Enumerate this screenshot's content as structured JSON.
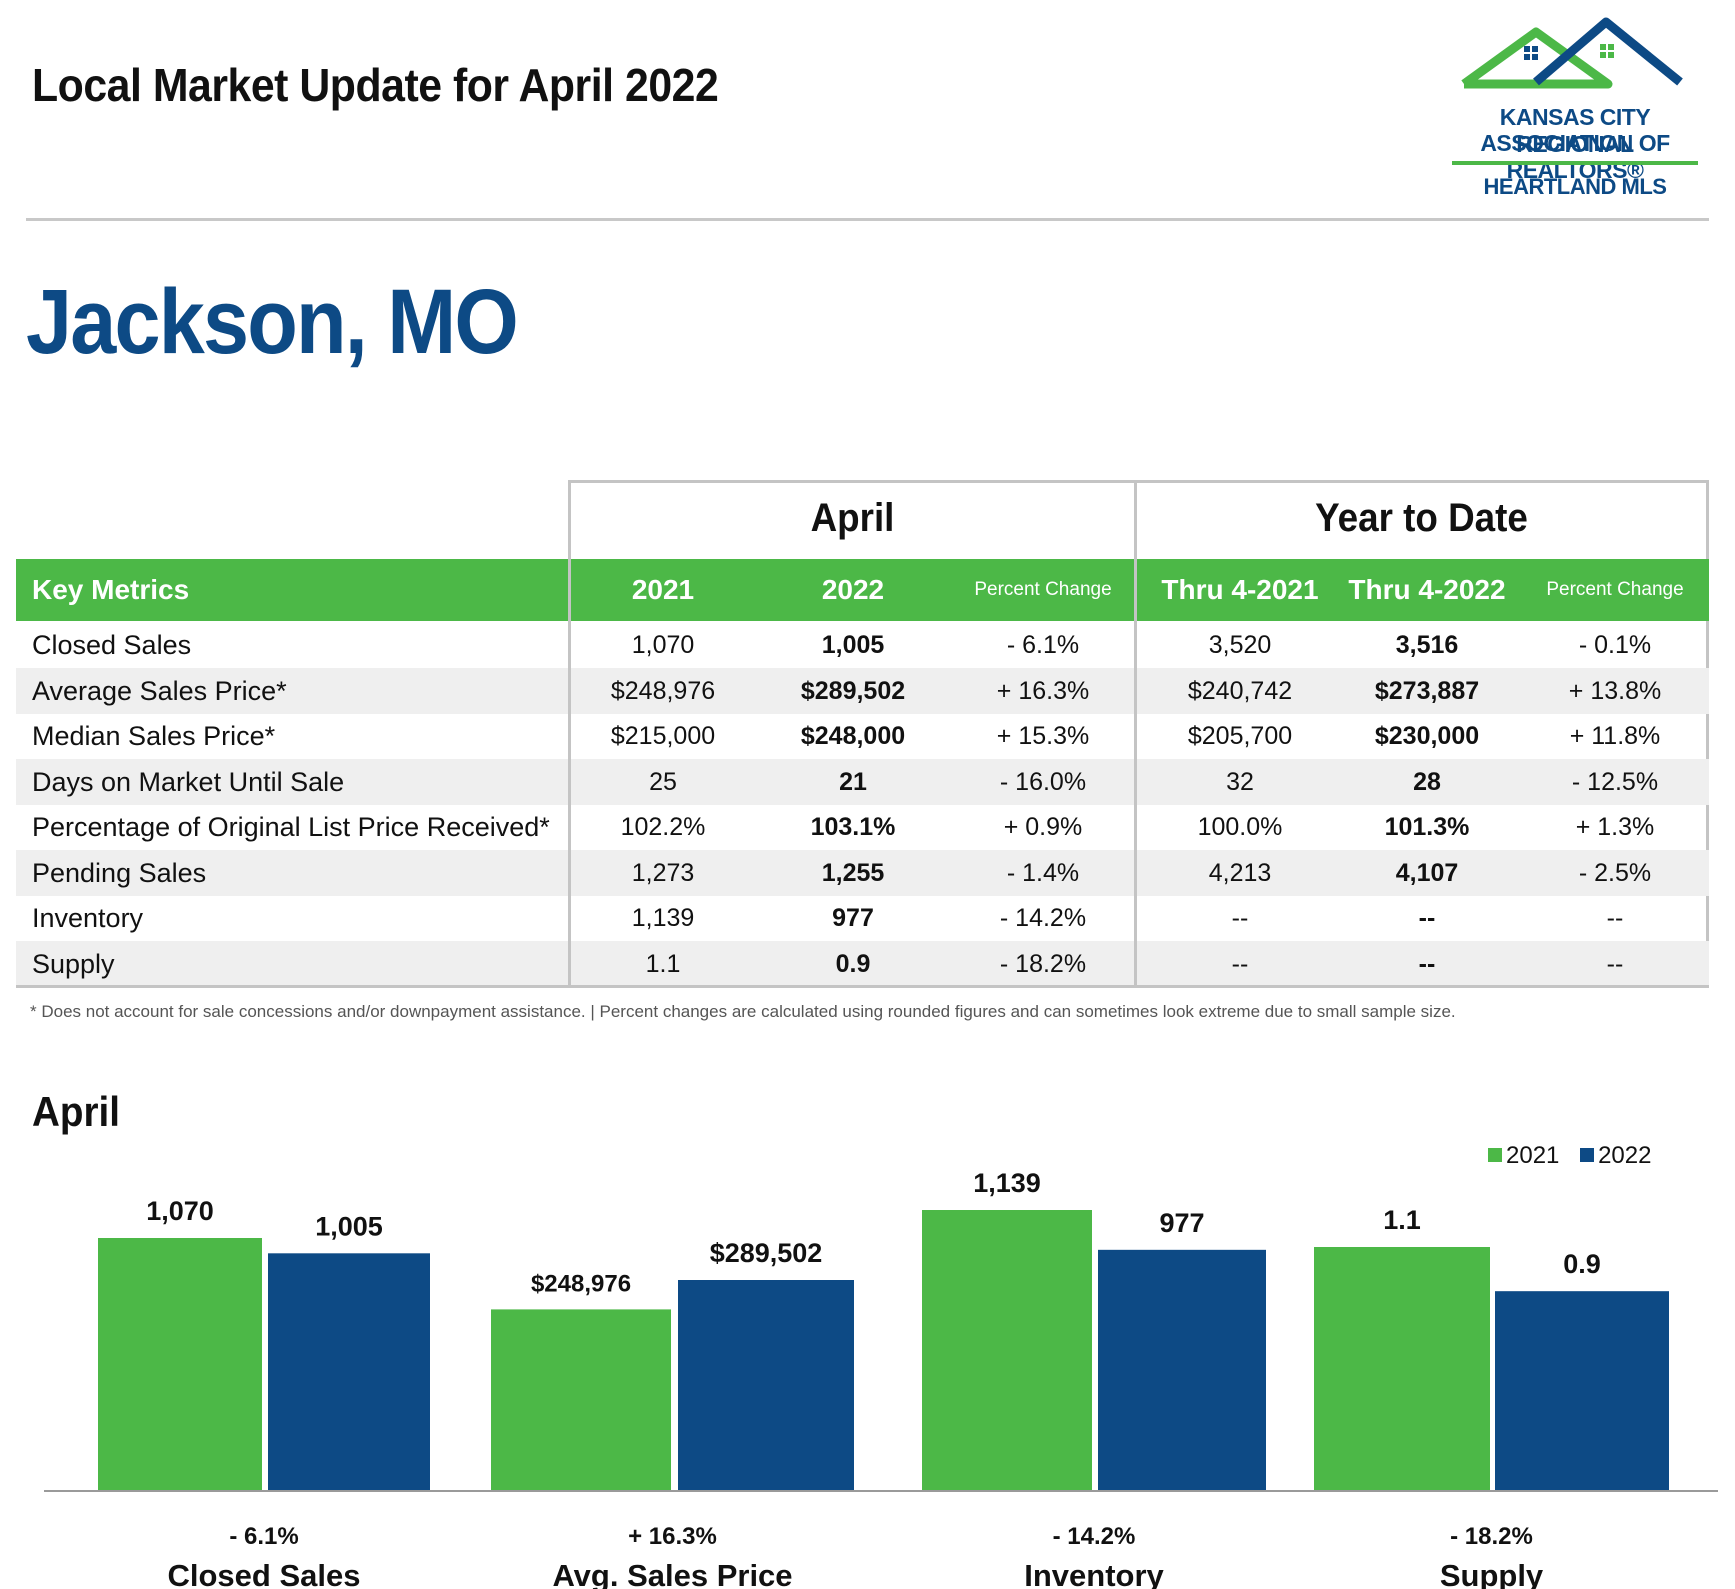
{
  "header": {
    "title": "Local Market Update for April 2022",
    "logo": {
      "line1": "KANSAS CITY REGIONAL",
      "line2": "ASSOCIATION OF REALTORS®",
      "line3": "HEARTLAND MLS",
      "colors": {
        "green": "#4cb847",
        "blue": "#0d4a85"
      }
    }
  },
  "place": "Jackson, MO",
  "table": {
    "groups": [
      "April",
      "Year to Date"
    ],
    "columns": [
      "Key Metrics",
      "2021",
      "2022",
      "Percent Change",
      "Thru 4-2021",
      "Thru 4-2022",
      "Percent Change"
    ],
    "rows": [
      {
        "metric": "Closed Sales",
        "m2021": "1,070",
        "m2022": "1,005",
        "mpct": "- 6.1%",
        "y2021": "3,520",
        "y2022": "3,516",
        "ypct": "- 0.1%"
      },
      {
        "metric": "Average Sales Price*",
        "m2021": "$248,976",
        "m2022": "$289,502",
        "mpct": "+ 16.3%",
        "y2021": "$240,742",
        "y2022": "$273,887",
        "ypct": "+ 13.8%"
      },
      {
        "metric": "Median Sales Price*",
        "m2021": "$215,000",
        "m2022": "$248,000",
        "mpct": "+ 15.3%",
        "y2021": "$205,700",
        "y2022": "$230,000",
        "ypct": "+ 11.8%"
      },
      {
        "metric": "Days on Market Until Sale",
        "m2021": "25",
        "m2022": "21",
        "mpct": "- 16.0%",
        "y2021": "32",
        "y2022": "28",
        "ypct": "- 12.5%"
      },
      {
        "metric": "Percentage of Original List Price Received*",
        "m2021": "102.2%",
        "m2022": "103.1%",
        "mpct": "+ 0.9%",
        "y2021": "100.0%",
        "y2022": "101.3%",
        "ypct": "+ 1.3%"
      },
      {
        "metric": "Pending Sales",
        "m2021": "1,273",
        "m2022": "1,255",
        "mpct": "- 1.4%",
        "y2021": "4,213",
        "y2022": "4,107",
        "ypct": "- 2.5%"
      },
      {
        "metric": "Inventory",
        "m2021": "1,139",
        "m2022": "977",
        "mpct": "- 14.2%",
        "y2021": "--",
        "y2022": "--",
        "ypct": "--"
      },
      {
        "metric": "Supply",
        "m2021": "1.1",
        "m2022": "0.9",
        "mpct": "- 18.2%",
        "y2021": "--",
        "y2022": "--",
        "ypct": "--"
      }
    ],
    "footnote": "* Does not account for sale concessions and/or downpayment assistance.  |  Percent changes are calculated using rounded figures and can sometimes look extreme due to small sample size."
  },
  "chart_data": {
    "type": "bar",
    "title": "April",
    "legend": [
      "2021",
      "2022"
    ],
    "legend_position": "top-right",
    "colors": {
      "2021": "#4cb847",
      "2022": "#0d4a85"
    },
    "groups": [
      {
        "category": "Closed Sales",
        "change": "- 6.1%",
        "values": [
          1070,
          1005
        ],
        "labels": [
          "1,070",
          "1,005"
        ]
      },
      {
        "category": "Avg. Sales Price",
        "change": "+ 16.3%",
        "values": [
          248976,
          289502
        ],
        "labels": [
          "$248,976",
          "$289,502"
        ]
      },
      {
        "category": "Inventory",
        "change": "- 14.2%",
        "values": [
          1139,
          977
        ],
        "labels": [
          "1,139",
          "977"
        ]
      },
      {
        "category": "Supply",
        "change": "- 18.2%",
        "values": [
          1.1,
          0.9
        ],
        "labels": [
          "1.1",
          "0.9"
        ]
      }
    ]
  }
}
